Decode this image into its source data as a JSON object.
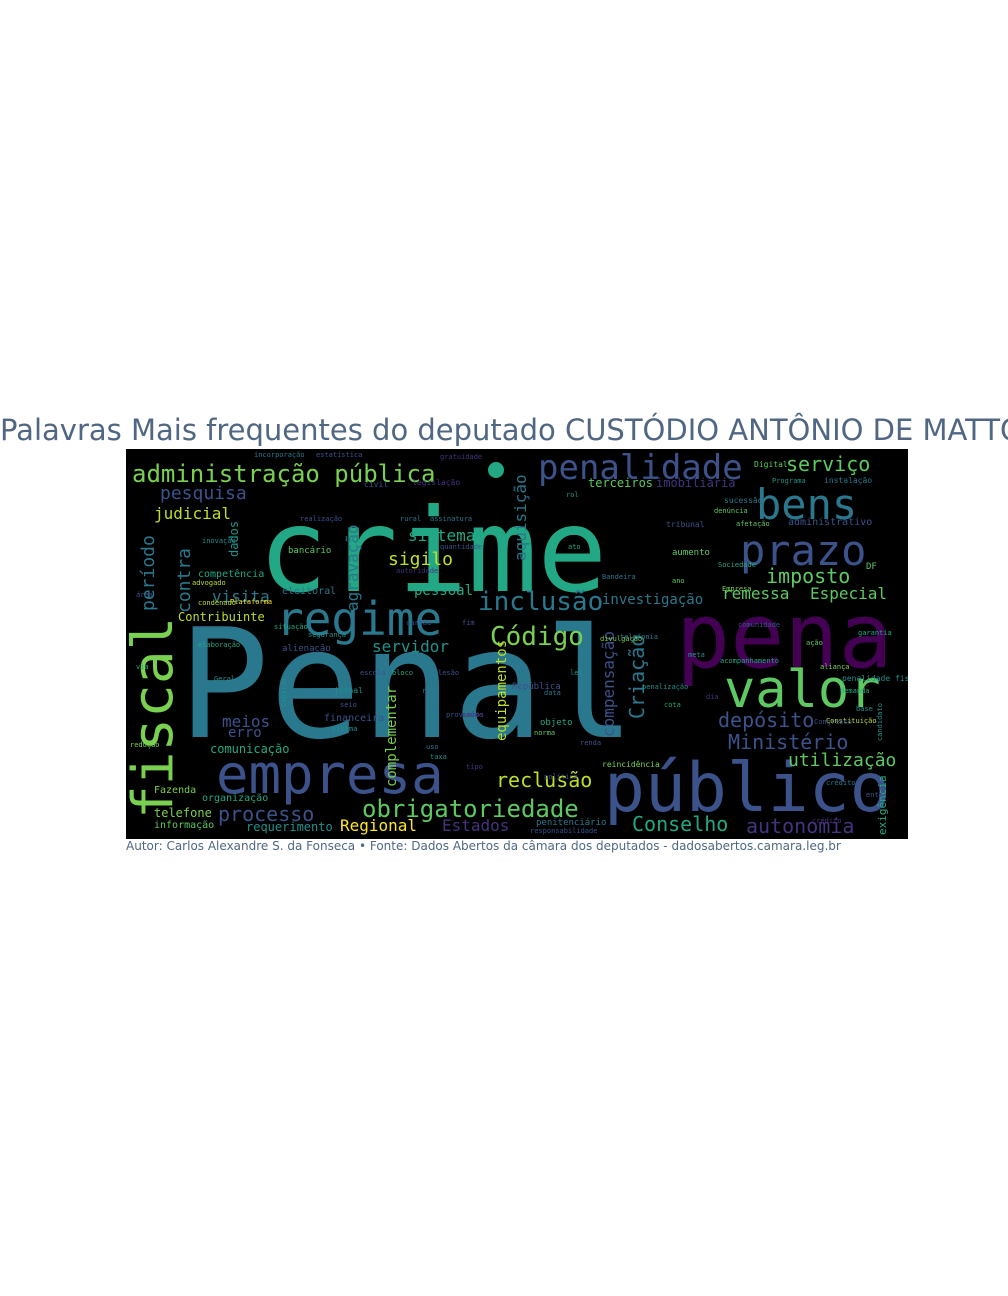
{
  "title": "Palavras Mais frequentes do deputado CUSTÓDIO ANTÔNIO DE MATTOS",
  "caption": "Autor: Carlos Alexandre S. da Fonseca • Fonte: Dados Abertos da câmara dos deputados - dadosabertos.camara.leg.br",
  "wordcloud": {
    "background": "#000000",
    "words": [
      {
        "text": "Penal",
        "color": "#2a788e"
      },
      {
        "text": "crime",
        "color": "#22a884"
      },
      {
        "text": "pena",
        "color": "#440154"
      },
      {
        "text": "público",
        "color": "#3b528b"
      },
      {
        "text": "fiscal",
        "color": "#7ad151"
      },
      {
        "text": "empresa",
        "color": "#3b528b"
      },
      {
        "text": "valor",
        "color": "#5ec962"
      },
      {
        "text": "regime",
        "color": "#2a788e"
      },
      {
        "text": "prazo",
        "color": "#3b528b"
      },
      {
        "text": "bens",
        "color": "#2a788e"
      },
      {
        "text": "penalidade",
        "color": "#3b528b"
      },
      {
        "text": "administração pública",
        "color": "#7ad151"
      },
      {
        "text": "obrigatoriedade",
        "color": "#5ec962"
      },
      {
        "text": "inclusão",
        "color": "#2a788e"
      },
      {
        "text": "Código",
        "color": "#7ad151"
      },
      {
        "text": "Ministério",
        "color": "#3b528b"
      },
      {
        "text": "depósito",
        "color": "#3b528b"
      },
      {
        "text": "Conselho",
        "color": "#22a884"
      },
      {
        "text": "autonomia",
        "color": "#46327e"
      },
      {
        "text": "imposto",
        "color": "#5ec962"
      },
      {
        "text": "serviço",
        "color": "#5ec962"
      },
      {
        "text": "reclusão",
        "color": "#bddf26"
      },
      {
        "text": "processo",
        "color": "#3b528b"
      },
      {
        "text": "Regional",
        "color": "#fde725"
      },
      {
        "text": "Estados",
        "color": "#46327e"
      },
      {
        "text": "utilização",
        "color": "#5ec962"
      },
      {
        "text": "remessa",
        "color": "#5ec962"
      },
      {
        "text": "Especial",
        "color": "#5ec962"
      },
      {
        "text": "pesquisa",
        "color": "#3b528b"
      },
      {
        "text": "judicial",
        "color": "#bddf26"
      },
      {
        "text": "período",
        "color": "#2a788e"
      },
      {
        "text": "contra",
        "color": "#2a788e"
      },
      {
        "text": "visita",
        "color": "#2a788e"
      },
      {
        "text": "sigilo",
        "color": "#bddf26"
      },
      {
        "text": "sistema",
        "color": "#22a884"
      },
      {
        "text": "servidor",
        "color": "#21918c"
      },
      {
        "text": "agravação",
        "color": "#2a788e"
      },
      {
        "text": "aquisição",
        "color": "#2a788e"
      },
      {
        "text": "investigação",
        "color": "#2a788e"
      },
      {
        "text": "compensação",
        "color": "#3b528b"
      },
      {
        "text": "Criação",
        "color": "#2a788e"
      },
      {
        "text": "equipamentos",
        "color": "#bddf26"
      },
      {
        "text": "complementar",
        "color": "#7ad151"
      },
      {
        "text": "meios",
        "color": "#3b528b"
      },
      {
        "text": "erro",
        "color": "#3b528b"
      },
      {
        "text": "comunicação",
        "color": "#22a884"
      },
      {
        "text": "requerimento",
        "color": "#21918c"
      },
      {
        "text": "telefone",
        "color": "#7ad151"
      },
      {
        "text": "Contribuinte",
        "color": "#bddf26"
      },
      {
        "text": "pessoal",
        "color": "#22a884"
      },
      {
        "text": "terceiros",
        "color": "#5ec962"
      },
      {
        "text": "imobiliária",
        "color": "#46327e"
      },
      {
        "text": "dados",
        "color": "#21918c"
      },
      {
        "text": "competência",
        "color": "#22a884"
      },
      {
        "text": "informação",
        "color": "#5ec962"
      },
      {
        "text": "organização",
        "color": "#22a884"
      },
      {
        "text": "Fazenda",
        "color": "#7ad151"
      },
      {
        "text": "República",
        "color": "#3b528b"
      },
      {
        "text": "exigência",
        "color": "#22a884"
      },
      {
        "text": "eleitoral",
        "color": "#2a788e"
      },
      {
        "text": "bancário",
        "color": "#5ec962"
      },
      {
        "text": "alienação",
        "color": "#3b528b"
      },
      {
        "text": "financeira",
        "color": "#3b528b"
      },
      {
        "text": "legislação",
        "color": "#46327e"
      },
      {
        "text": "penitenciário",
        "color": "#2a788e"
      },
      {
        "text": "administrativo",
        "color": "#3b528b"
      },
      {
        "text": "Digital",
        "color": "#5ec962"
      },
      {
        "text": "aumento",
        "color": "#5ec962"
      },
      {
        "text": "instalação",
        "color": "#2a788e"
      },
      {
        "text": "Programa",
        "color": "#21918c"
      },
      {
        "text": "civil",
        "color": "#3b528b"
      },
      {
        "text": "tribunal",
        "color": "#3b528b"
      },
      {
        "text": "sucessão",
        "color": "#2a788e"
      },
      {
        "text": "penalidade fiscal",
        "color": "#21918c"
      },
      {
        "text": "acompanhamento",
        "color": "#22a884"
      },
      {
        "text": "reincidência",
        "color": "#7ad151"
      },
      {
        "text": "responsabilidade",
        "color": "#3b528b"
      },
      {
        "text": "crédito",
        "color": "#46327e"
      },
      {
        "text": "divulgação",
        "color": "#7ad151"
      },
      {
        "text": "Constituição",
        "color": "#bddf26"
      },
      {
        "text": "política",
        "color": "#3b528b"
      },
      {
        "text": "objeto",
        "color": "#22a884"
      },
      {
        "text": "jornal",
        "color": "#21918c"
      },
      {
        "text": "aliança",
        "color": "#7ad151"
      },
      {
        "text": "advogado",
        "color": "#bddf26"
      },
      {
        "text": "elaboração",
        "color": "#22a884"
      },
      {
        "text": "redução",
        "color": "#7ad151"
      },
      {
        "text": "Capital",
        "color": "#21918c"
      },
      {
        "text": "Congresso",
        "color": "#3b528b"
      },
      {
        "text": "garantia",
        "color": "#22a884"
      },
      {
        "text": "denúncia",
        "color": "#5ec962"
      },
      {
        "text": "afetação",
        "color": "#5ec962"
      },
      {
        "text": "penalização",
        "color": "#21918c"
      },
      {
        "text": "comunidade",
        "color": "#3b528b"
      },
      {
        "text": "telefonia",
        "color": "#2a788e"
      },
      {
        "text": "gratuidade",
        "color": "#46327e"
      },
      {
        "text": "incorporação",
        "color": "#2a788e"
      },
      {
        "text": "estatística",
        "color": "#3b528b"
      },
      {
        "text": "demanda",
        "color": "#22a884"
      },
      {
        "text": "candidato",
        "color": "#21918c"
      },
      {
        "text": "Plataforma",
        "color": "#fde725"
      },
      {
        "text": "condenado",
        "color": "#bddf26"
      },
      {
        "text": "realização",
        "color": "#3b528b"
      },
      {
        "text": "inovação",
        "color": "#21918c"
      },
      {
        "text": "Sociedade",
        "color": "#22a884"
      },
      {
        "text": "Empresa",
        "color": "#7ad151"
      },
      {
        "text": "vítima",
        "color": "#21918c"
      },
      {
        "text": "rural",
        "color": "#2a788e"
      },
      {
        "text": "assinatura",
        "color": "#2a788e"
      },
      {
        "text": "situação",
        "color": "#22a884"
      },
      {
        "text": "autoridade",
        "color": "#46327e"
      },
      {
        "text": "quantidade",
        "color": "#3b528b"
      },
      {
        "text": "proventos",
        "color": "#3b528b"
      },
      {
        "text": "segurança",
        "color": "#21918c"
      },
      {
        "text": "Bandeira",
        "color": "#2a788e"
      },
      {
        "text": "Geral",
        "color": "#21918c"
      },
      {
        "text": "DF",
        "color": "#5ec962"
      },
      {
        "text": "cartão",
        "color": "#3b528b"
      },
      {
        "text": "lesão",
        "color": "#3b528b"
      },
      {
        "text": "crédito",
        "color": "#2a788e"
      },
      {
        "text": "escola",
        "color": "#3b528b"
      },
      {
        "text": "saúde",
        "color": "#46327e"
      },
      {
        "text": "bloco",
        "color": "#22a884"
      },
      {
        "text": "meta",
        "color": "#21918c"
      },
      {
        "text": "norma",
        "color": "#5ec962"
      },
      {
        "text": "renda",
        "color": "#3b528b"
      },
      {
        "text": "lei",
        "color": "#21918c"
      },
      {
        "text": "uso",
        "color": "#2a788e"
      },
      {
        "text": "ano",
        "color": "#5ec962"
      },
      {
        "text": "dia",
        "color": "#46327e"
      },
      {
        "text": "área",
        "color": "#3b528b"
      },
      {
        "text": "via",
        "color": "#22a884"
      },
      {
        "text": "taxa",
        "color": "#21918c"
      },
      {
        "text": "rede",
        "color": "#2a788e"
      },
      {
        "text": "fim",
        "color": "#3b528b"
      },
      {
        "text": "cota",
        "color": "#22a884"
      },
      {
        "text": "base",
        "color": "#21918c"
      },
      {
        "text": "ação",
        "color": "#5ec962"
      },
      {
        "text": "ente",
        "color": "#3b528b"
      },
      {
        "text": "data",
        "color": "#2a788e"
      },
      {
        "text": "tipo",
        "color": "#46327e"
      },
      {
        "text": "rol",
        "color": "#21918c"
      },
      {
        "text": "ato",
        "color": "#22a884"
      },
      {
        "text": "seio",
        "color": "#3b528b"
      }
    ]
  }
}
